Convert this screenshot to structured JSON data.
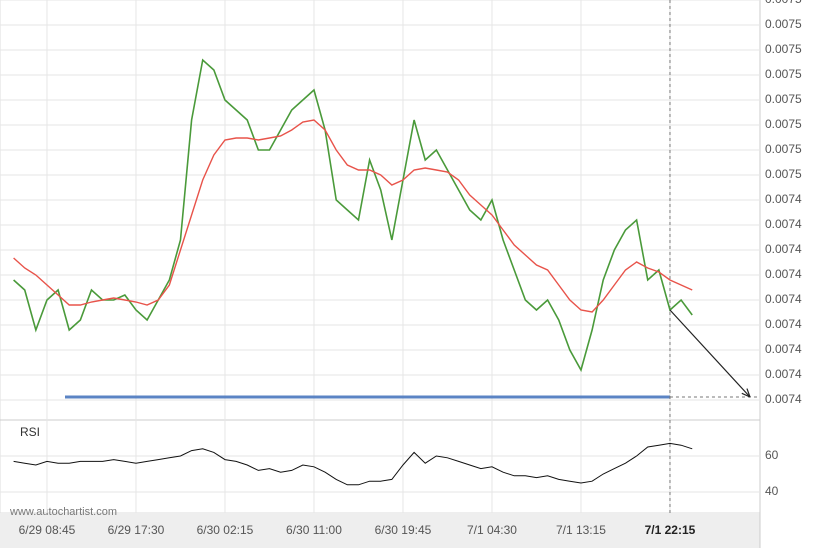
{
  "chart_data": [
    {
      "type": "line",
      "categories": [
        null,
        null,
        null,
        "6/29 08:45",
        null,
        null,
        null,
        null,
        null,
        null,
        null,
        "6/29 17:30",
        null,
        null,
        null,
        null,
        null,
        null,
        null,
        "6/30 02:15",
        null,
        null,
        null,
        null,
        null,
        null,
        null,
        "6/30 11:00",
        null,
        null,
        null,
        null,
        null,
        null,
        null,
        "6/30 19:45",
        null,
        null,
        null,
        null,
        null,
        null,
        null,
        "7/1 04:30",
        null,
        null,
        null,
        null,
        null,
        null,
        null,
        "7/1 13:15",
        null,
        null,
        null,
        null,
        null,
        null,
        null,
        "7/1 22:15",
        null,
        null
      ],
      "series": [
        {
          "color": "#4a9a3a",
          "values": [
            0.00743,
            0.007428,
            0.00742,
            0.007426,
            0.007428,
            0.00742,
            0.007422,
            0.007428,
            0.007426,
            0.007426,
            0.007427,
            0.007424,
            0.007422,
            0.007426,
            0.00743,
            0.007438,
            0.007462,
            0.007474,
            0.007472,
            0.007466,
            0.007464,
            0.007462,
            0.007456,
            0.007456,
            0.00746,
            0.007464,
            0.007466,
            0.007468,
            0.00746,
            0.007446,
            0.007444,
            0.007442,
            0.007454,
            0.007448,
            0.007438,
            0.00745,
            0.007462,
            0.007454,
            0.007456,
            0.007452,
            0.007448,
            0.007444,
            0.007442,
            0.007446,
            0.007438,
            0.007432,
            0.007426,
            0.007424,
            0.007426,
            0.007422,
            0.007416,
            0.007412,
            0.00742,
            0.00743,
            0.007436,
            0.00744,
            0.007442,
            0.00743,
            0.007432,
            0.007424,
            0.007426,
            0.007423
          ]
        },
        {
          "color": "#e8534a",
          "values": [
            0.0074344,
            0.0074324,
            0.007431,
            0.007429,
            0.007427,
            0.007425,
            0.007425,
            0.0074256,
            0.007426,
            0.0074264,
            0.007426,
            0.0074256,
            0.007425,
            0.007426,
            0.007429,
            0.007436,
            0.007443,
            0.00745,
            0.007455,
            0.007458,
            0.0074584,
            0.0074584,
            0.007458,
            0.0074584,
            0.0074588,
            0.00746,
            0.0074616,
            0.007462,
            0.00746,
            0.007456,
            0.007453,
            0.007452,
            0.007452,
            0.007451,
            0.007449,
            0.00745,
            0.007452,
            0.0074524,
            0.007452,
            0.0074516,
            0.00745,
            0.007447,
            0.007445,
            0.007443,
            0.00744,
            0.007437,
            0.007435,
            0.007433,
            0.007432,
            0.007429,
            0.007426,
            0.007424,
            0.0074236,
            0.007426,
            0.007429,
            0.007432,
            0.0074336,
            0.0074324,
            0.0074316,
            0.00743,
            0.007429,
            0.007428
          ]
        }
      ],
      "support_level": 0.0074066,
      "support_color": "#5b84c4",
      "ylim": [
        0.007405,
        0.007486
      ],
      "yticks": [
        {
          "value": 0.007406,
          "label": "0.0074"
        },
        {
          "value": 0.007411,
          "label": "0.0074"
        },
        {
          "value": 0.007416,
          "label": "0.0074"
        },
        {
          "value": 0.007421,
          "label": "0.0074"
        },
        {
          "value": 0.007426,
          "label": "0.0074"
        },
        {
          "value": 0.007431,
          "label": "0.0074"
        },
        {
          "value": 0.007436,
          "label": "0.0074"
        },
        {
          "value": 0.007441,
          "label": "0.0074"
        },
        {
          "value": 0.007446,
          "label": "0.0074"
        },
        {
          "value": 0.007451,
          "label": "0.0075"
        },
        {
          "value": 0.007456,
          "label": "0.0075"
        },
        {
          "value": 0.007461,
          "label": "0.0075"
        },
        {
          "value": 0.007466,
          "label": "0.0075"
        },
        {
          "value": 0.007471,
          "label": "0.0075"
        },
        {
          "value": 0.007476,
          "label": "0.0075"
        },
        {
          "value": 0.007481,
          "label": "0.0075"
        },
        {
          "value": 0.007486,
          "label": "0.0075"
        }
      ],
      "grid": true,
      "watermark": "www.autochartist.com"
    },
    {
      "type": "line",
      "title": "RSI",
      "color": "#111111",
      "values": [
        57,
        56,
        55,
        57,
        56,
        56,
        57,
        57,
        57,
        58,
        57,
        56,
        57,
        58,
        59,
        60,
        63,
        64,
        62,
        58,
        57,
        55,
        52,
        53,
        51,
        52,
        55,
        54,
        51,
        47,
        44,
        44,
        46,
        46,
        47,
        55,
        62,
        56,
        60,
        59,
        57,
        55,
        53,
        54,
        51,
        49,
        49,
        48,
        49,
        47,
        46,
        45,
        46,
        50,
        53,
        56,
        60,
        65,
        66,
        67,
        66,
        64
      ],
      "ylim": [
        30,
        80
      ],
      "yticks": [
        40,
        60
      ],
      "grid": true
    }
  ]
}
